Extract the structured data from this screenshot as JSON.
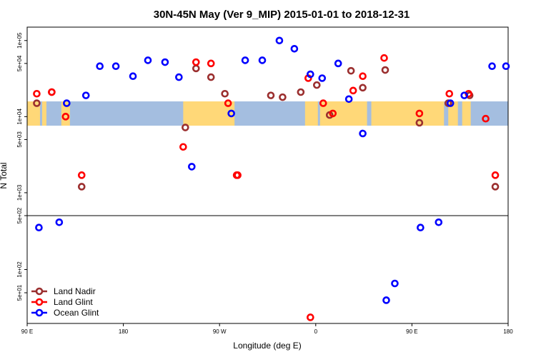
{
  "chart_data": {
    "type": "scatter",
    "title": "30N-45N May (Ver 9_MIP)   2015-01-01 to 2018-12-31",
    "xlabel": "Longitude (deg E)",
    "ylabel": "N Total",
    "x_ticks": [
      {
        "value": 90,
        "label": "90 E"
      },
      {
        "value": 180,
        "label": "180"
      },
      {
        "value": 270,
        "label": "90 W"
      },
      {
        "value": 360,
        "label": "0"
      },
      {
        "value": 450,
        "label": "90 E"
      },
      {
        "value": 540,
        "label": "180"
      }
    ],
    "xlim": [
      90,
      540
    ],
    "y_scale": "log",
    "upper_ylim": [
      500,
      150000
    ],
    "lower_ylim": [
      20,
      500
    ],
    "upper_y_ticks": [
      {
        "value": 1000,
        "label": "1e+03"
      },
      {
        "value": 5000,
        "label": "5e+03"
      },
      {
        "value": 10000,
        "label": "1e+04"
      },
      {
        "value": 50000,
        "label": "5e+04"
      },
      {
        "value": 100000,
        "label": "1e+05"
      }
    ],
    "lower_y_ticks": [
      {
        "value": 50,
        "label": "5e+01"
      },
      {
        "value": 100,
        "label": "1e+02"
      },
      {
        "value": 500,
        "label": "5e+02"
      }
    ],
    "map_band": {
      "land_color": "#FFD878",
      "ocean_color": "#A4BEE0"
    },
    "series": [
      {
        "name": "Land Nadir",
        "color": "#9B2F2F",
        "points": [
          [
            99,
            15000
          ],
          [
            113,
            21000
          ],
          [
            141,
            1200
          ],
          [
            238,
            7200
          ],
          [
            248,
            43000
          ],
          [
            262,
            33000
          ],
          [
            275,
            20000
          ],
          [
            318,
            19000
          ],
          [
            329,
            18000
          ],
          [
            346,
            21000
          ],
          [
            361,
            26000
          ],
          [
            373,
            10500
          ],
          [
            393,
            40000
          ],
          [
            404,
            24000
          ],
          [
            425,
            41000
          ],
          [
            457,
            8300
          ],
          [
            484,
            15000
          ],
          [
            504,
            19000
          ],
          [
            528,
            1200
          ]
        ]
      },
      {
        "name": "Land Glint",
        "color": "#FF0000",
        "points": [
          [
            99,
            20000
          ],
          [
            113,
            21000
          ],
          [
            126,
            10000
          ],
          [
            141,
            1700
          ],
          [
            236,
            4000
          ],
          [
            248,
            52000
          ],
          [
            262,
            50000
          ],
          [
            278,
            15000
          ],
          [
            286,
            1700
          ],
          [
            287,
            1700
          ],
          [
            355,
            24
          ],
          [
            353,
            32000
          ],
          [
            367,
            15000
          ],
          [
            376,
            11000
          ],
          [
            395,
            22000
          ],
          [
            404,
            34000
          ],
          [
            424,
            59000
          ],
          [
            457,
            11000
          ],
          [
            485,
            20000
          ],
          [
            503,
            20000
          ],
          [
            519,
            9400
          ],
          [
            528,
            1700
          ]
        ]
      },
      {
        "name": "Ocean Glint",
        "color": "#0000FF",
        "points": [
          [
            101,
            350
          ],
          [
            120,
            410
          ],
          [
            127,
            15000
          ],
          [
            145,
            19000
          ],
          [
            158,
            46000
          ],
          [
            173,
            46000
          ],
          [
            189,
            34000
          ],
          [
            203,
            55000
          ],
          [
            219,
            52000
          ],
          [
            232,
            33000
          ],
          [
            244,
            2200
          ],
          [
            281,
            11000
          ],
          [
            294,
            55000
          ],
          [
            310,
            55000
          ],
          [
            326,
            100000
          ],
          [
            340,
            78000
          ],
          [
            355,
            36000
          ],
          [
            366,
            32000
          ],
          [
            381,
            50000
          ],
          [
            391,
            17000
          ],
          [
            404,
            6000
          ],
          [
            426,
            40
          ],
          [
            434,
            66
          ],
          [
            458,
            350
          ],
          [
            475,
            410
          ],
          [
            486,
            15000
          ],
          [
            499,
            19000
          ],
          [
            525,
            46000
          ],
          [
            538,
            46000
          ]
        ]
      }
    ],
    "legend_position": "bottom-left",
    "grid": false
  }
}
